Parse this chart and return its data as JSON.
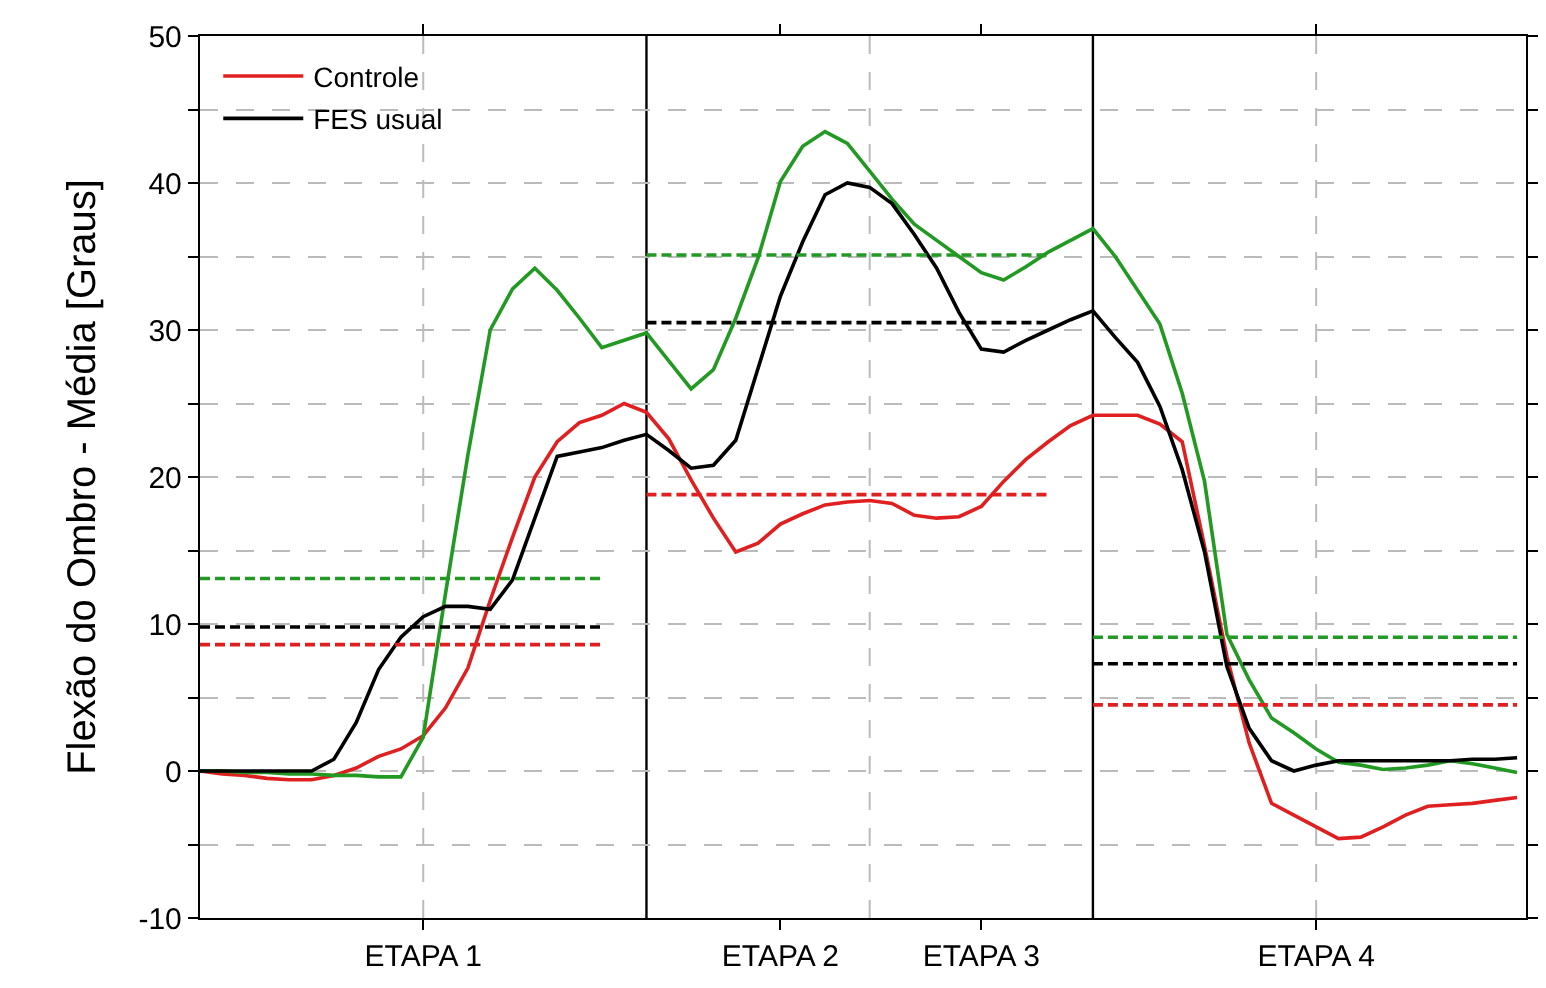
{
  "chart_data": {
    "type": "line",
    "ylabel": "Flexão do Ombro - Média [Graus]",
    "ylim": [
      -10,
      50
    ],
    "categories": [
      null,
      null,
      null,
      null,
      null,
      null,
      null,
      null,
      null,
      null,
      "ETAPA 1",
      null,
      null,
      null,
      null,
      null,
      null,
      null,
      null,
      null,
      null,
      null,
      null,
      null,
      null,
      null,
      "ETAPA 2",
      null,
      null,
      null,
      null,
      null,
      null,
      null,
      null,
      "ETAPA 3",
      null,
      null,
      null,
      null,
      null,
      null,
      null,
      null,
      null,
      null,
      null,
      null,
      null,
      null,
      "ETAPA 4",
      null,
      null,
      null,
      null,
      null,
      null,
      null,
      null,
      null
    ],
    "yticks": [
      -10,
      {
        "value": -5,
        "label": null
      },
      0,
      {
        "value": 5,
        "label": null
      },
      10,
      {
        "value": 15,
        "label": null
      },
      20,
      {
        "value": 25,
        "label": null
      },
      30,
      {
        "value": 35,
        "label": null
      },
      40,
      {
        "value": 45,
        "label": null
      },
      50
    ],
    "grid": true,
    "legend": "top left",
    "line_style": "solid",
    "marker": "none",
    "series": [
      {
        "name": "Controle",
        "color": "#e02020",
        "values": [
          0,
          -0.2,
          -0.3,
          -0.5,
          -0.6,
          -0.6,
          -0.3,
          0.2,
          1,
          1.5,
          2.4,
          4.3,
          7,
          11.6,
          15.9,
          20,
          22.4,
          23.7,
          24.2,
          25,
          24.4,
          22.6,
          19.8,
          17.2,
          14.9,
          15.5,
          16.8,
          17.5,
          18.1,
          18.3,
          18.4,
          18.2,
          17.4,
          17.2,
          17.3,
          18,
          19.7,
          21.2,
          22.4,
          23.5,
          24.2,
          24.2,
          24.2,
          23.6,
          22.4,
          15.3,
          7.8,
          1.9,
          -2.2,
          -3,
          -3.8,
          -4.6,
          -4.5,
          -3.8,
          -3,
          -2.4,
          -2.3,
          -2.2,
          -2,
          -1.8
        ]
      },
      {
        "color": "#229922",
        "values": [
          0,
          0,
          -0.1,
          -0.1,
          -0.2,
          -0.2,
          -0.3,
          -0.3,
          -0.4,
          -0.4,
          2.3,
          12.1,
          21.5,
          30,
          32.8,
          34.2,
          32.7,
          30.8,
          28.8,
          29.3,
          29.8,
          27.9,
          26,
          27.3,
          30.8,
          34.9,
          40.1,
          42.5,
          43.5,
          42.7,
          40.8,
          38.9,
          37.2,
          36.1,
          35,
          33.9,
          33.4,
          34.3,
          35.3,
          36.1,
          36.9,
          35,
          32.7,
          30.4,
          25.7,
          19.7,
          9.3,
          6.2,
          3.6,
          2.6,
          1.5,
          0.6,
          0.4,
          0.1,
          0.2,
          0.4,
          0.7,
          0.5,
          0.2,
          -0.1
        ]
      },
      {
        "name": "FES usual",
        "color": "#000000",
        "values": [
          0,
          0,
          0,
          0,
          0,
          0,
          0.8,
          3.3,
          6.9,
          9.1,
          10.5,
          11.2,
          11.2,
          11,
          13,
          17.2,
          21.4,
          21.7,
          22,
          22.5,
          22.9,
          21.8,
          20.6,
          20.8,
          22.5,
          27.4,
          32.3,
          36,
          39.2,
          40,
          39.7,
          38.6,
          36.5,
          34.2,
          31.2,
          28.7,
          28.5,
          29.3,
          30,
          30.7,
          31.3,
          29.5,
          27.8,
          24.8,
          20.5,
          14.9,
          7.1,
          2.9,
          0.7,
          0,
          0.4,
          0.7,
          0.7,
          0.7,
          0.7,
          0.7,
          0.7,
          0.8,
          0.8,
          0.9
        ]
      },
      {
        "color": "#229922",
        "line_style": "dashed",
        "values": [
          13.1,
          13.1,
          13.1,
          13.1,
          13.1,
          13.1,
          13.1,
          13.1,
          13.1,
          13.1,
          13.1,
          13.1,
          13.1,
          13.1,
          13.1,
          13.1,
          13.1,
          13.1,
          13.1,
          null,
          35.1,
          35.1,
          35.1,
          35.1,
          35.1,
          35.1,
          35.1,
          35.1,
          35.1,
          35.1,
          35.1,
          35.1,
          35.1,
          35.1,
          35.1,
          35.1,
          35.1,
          35.1,
          35.1,
          null,
          9.1,
          9.1,
          9.1,
          9.1,
          9.1,
          9.1,
          9.1,
          9.1,
          9.1,
          9.1,
          9.1,
          9.1,
          9.1,
          9.1,
          9.1,
          9.1,
          9.1,
          9.1,
          9.1,
          9.1
        ]
      },
      {
        "color": "#000000",
        "line_style": "dashed",
        "values": [
          9.8,
          9.8,
          9.8,
          9.8,
          9.8,
          9.8,
          9.8,
          9.8,
          9.8,
          9.8,
          9.8,
          9.8,
          9.8,
          9.8,
          9.8,
          9.8,
          9.8,
          9.8,
          9.8,
          null,
          30.5,
          30.5,
          30.5,
          30.5,
          30.5,
          30.5,
          30.5,
          30.5,
          30.5,
          30.5,
          30.5,
          30.5,
          30.5,
          30.5,
          30.5,
          30.5,
          30.5,
          30.5,
          30.5,
          null,
          7.3,
          7.3,
          7.3,
          7.3,
          7.3,
          7.3,
          7.3,
          7.3,
          7.3,
          7.3,
          7.3,
          7.3,
          7.3,
          7.3,
          7.3,
          7.3,
          7.3,
          7.3,
          7.3,
          7.3
        ]
      },
      {
        "color": "#e02020",
        "line_style": "dashed",
        "values": [
          8.6,
          8.6,
          8.6,
          8.6,
          8.6,
          8.6,
          8.6,
          8.6,
          8.6,
          8.6,
          8.6,
          8.6,
          8.6,
          8.6,
          8.6,
          8.6,
          8.6,
          8.6,
          8.6,
          null,
          18.8,
          18.8,
          18.8,
          18.8,
          18.8,
          18.8,
          18.8,
          18.8,
          18.8,
          18.8,
          18.8,
          18.8,
          18.8,
          18.8,
          18.8,
          18.8,
          18.8,
          18.8,
          18.8,
          null,
          4.5,
          4.5,
          4.5,
          4.5,
          4.5,
          4.5,
          4.5,
          4.5,
          4.5,
          4.5,
          4.5,
          4.5,
          4.5,
          4.5,
          4.5,
          4.5,
          4.5,
          4.5,
          4.5,
          4.5
        ]
      }
    ]
  }
}
